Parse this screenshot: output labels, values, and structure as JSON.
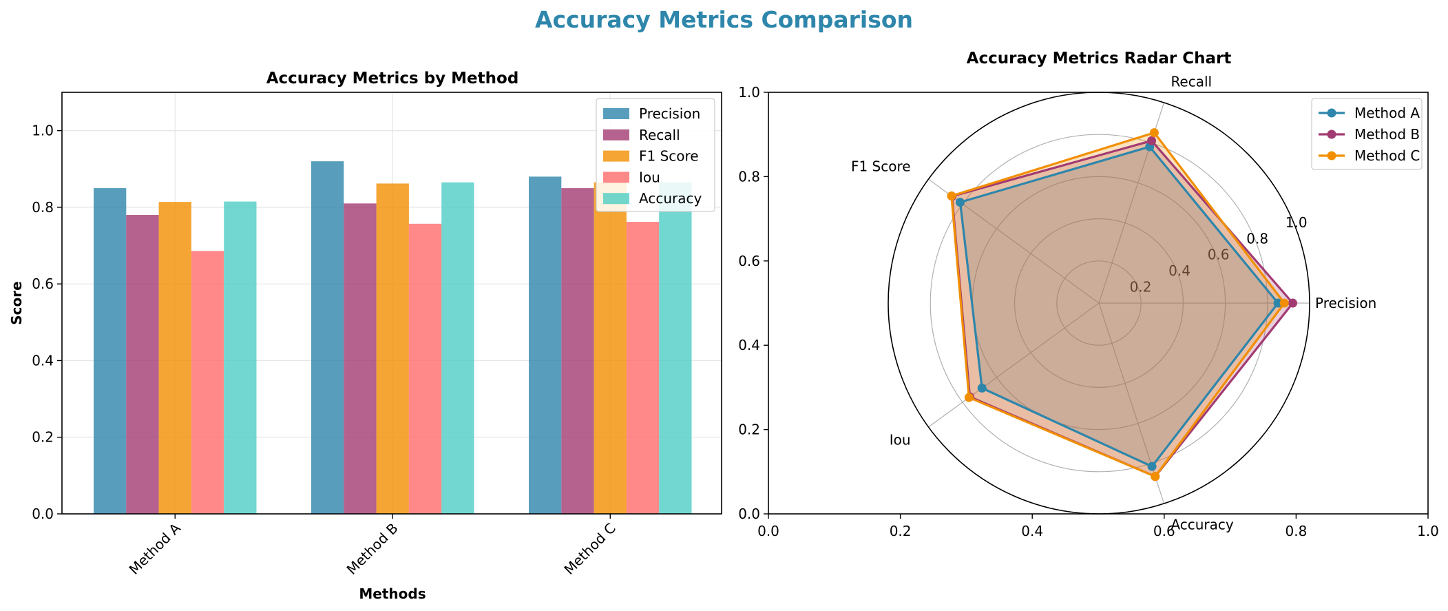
{
  "suptitle": "Accuracy Metrics Comparison",
  "colors": {
    "title": "#2e86ab",
    "precision": "#2e86ab",
    "recall": "#a23b72",
    "f1": "#f18f01",
    "iou": "#ff6b6b",
    "accuracy": "#4ecdc4",
    "radar_fill": "#c9a48f"
  },
  "chart_data": [
    {
      "type": "bar",
      "title": "Accuracy Metrics by Method",
      "xlabel": "Methods",
      "ylabel": "Score",
      "ylim": [
        0,
        1.1
      ],
      "yticks": [
        "0.0",
        "0.2",
        "0.4",
        "0.6",
        "0.8",
        "1.0"
      ],
      "grid": true,
      "legend_position": "top-right",
      "categories": [
        "Method A",
        "Method B",
        "Method C"
      ],
      "series": [
        {
          "name": "Precision",
          "color": "#2e86ab",
          "values": [
            0.85,
            0.92,
            0.88
          ]
        },
        {
          "name": "Recall",
          "color": "#a23b72",
          "values": [
            0.78,
            0.81,
            0.85
          ]
        },
        {
          "name": "F1 Score",
          "color": "#f18f01",
          "values": [
            0.814,
            0.862,
            0.865
          ]
        },
        {
          "name": "Iou",
          "color": "#ff6b6b",
          "values": [
            0.686,
            0.757,
            0.762
          ]
        },
        {
          "name": "Accuracy",
          "color": "#4ecdc4",
          "values": [
            0.815,
            0.865,
            0.865
          ]
        }
      ]
    },
    {
      "type": "radar",
      "title": "Accuracy Metrics Radar Chart",
      "axes": [
        "Precision",
        "Recall",
        "F1 Score",
        "Iou",
        "Accuracy"
      ],
      "rlim": [
        0,
        1.0
      ],
      "rticks": [
        "0.2",
        "0.4",
        "0.6",
        "0.8",
        "1.0"
      ],
      "frame_xticks": [
        "0.0",
        "0.2",
        "0.4",
        "0.6",
        "0.8",
        "1.0"
      ],
      "frame_yticks": [
        "0.0",
        "0.2",
        "0.4",
        "0.6",
        "0.8",
        "1.0"
      ],
      "legend_position": "top-right",
      "series": [
        {
          "name": "Method A",
          "color": "#2e86ab",
          "values": [
            0.85,
            0.78,
            0.814,
            0.686,
            0.815
          ]
        },
        {
          "name": "Method B",
          "color": "#a23b72",
          "values": [
            0.92,
            0.81,
            0.862,
            0.757,
            0.865
          ]
        },
        {
          "name": "Method C",
          "color": "#f18f01",
          "values": [
            0.88,
            0.85,
            0.865,
            0.762,
            0.865
          ]
        }
      ]
    }
  ]
}
